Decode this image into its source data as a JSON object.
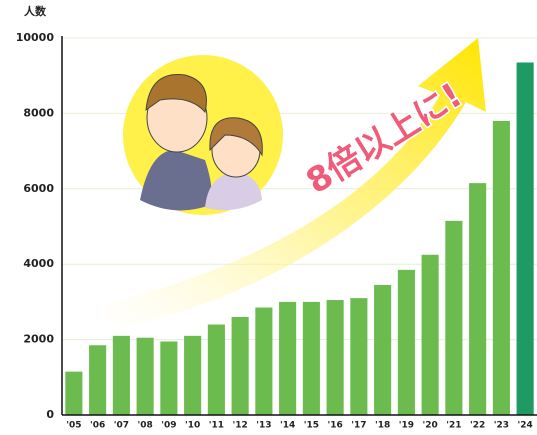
{
  "chart_data": {
    "type": "bar",
    "y_label": "人数",
    "annotation": "8倍以上に!",
    "categories": [
      "'05",
      "'06",
      "'07",
      "'08",
      "'09",
      "'10",
      "'11",
      "'12",
      "'13",
      "'14",
      "'15",
      "'16",
      "'17",
      "'18",
      "'19",
      "'20",
      "'21",
      "'22",
      "'23",
      "'24"
    ],
    "values": [
      1150,
      1850,
      2100,
      2050,
      1950,
      2100,
      2400,
      2600,
      2850,
      3000,
      3000,
      3050,
      3100,
      3450,
      3850,
      4250,
      5150,
      6150,
      7800,
      9350
    ],
    "colors": [
      "#6cbb4f",
      "#6cbb4f",
      "#6cbb4f",
      "#6cbb4f",
      "#6cbb4f",
      "#6cbb4f",
      "#6cbb4f",
      "#6cbb4f",
      "#6cbb4f",
      "#6cbb4f",
      "#6cbb4f",
      "#6cbb4f",
      "#6cbb4f",
      "#6cbb4f",
      "#6cbb4f",
      "#6cbb4f",
      "#6cbb4f",
      "#6cbb4f",
      "#6cbb4f",
      "#1f9a62"
    ],
    "ylim": [
      0,
      10000
    ],
    "yticks": [
      0,
      2000,
      4000,
      6000,
      8000,
      10000
    ],
    "grid": true
  }
}
